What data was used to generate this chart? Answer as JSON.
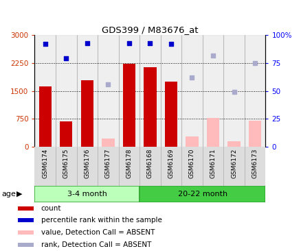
{
  "title": "GDS399 / M83676_at",
  "samples": [
    "GSM6174",
    "GSM6175",
    "GSM6176",
    "GSM6177",
    "GSM6178",
    "GSM6168",
    "GSM6169",
    "GSM6170",
    "GSM6171",
    "GSM6172",
    "GSM6173"
  ],
  "count_values": [
    1620,
    680,
    1780,
    null,
    2240,
    2130,
    1760,
    null,
    null,
    null,
    null
  ],
  "count_absent_values": [
    null,
    null,
    null,
    230,
    null,
    null,
    null,
    280,
    780,
    155,
    700
  ],
  "rank_values": [
    92,
    79,
    93,
    null,
    93,
    93,
    92,
    null,
    null,
    null,
    null
  ],
  "rank_absent_values": [
    null,
    null,
    null,
    56,
    null,
    null,
    null,
    62,
    82,
    49,
    75
  ],
  "ylim_left": [
    0,
    3000
  ],
  "ylim_right": [
    0,
    100
  ],
  "yticks_left": [
    0,
    750,
    1500,
    2250,
    3000
  ],
  "ytick_labels_left": [
    "0",
    "750",
    "1500",
    "2250",
    "3000"
  ],
  "yticks_right": [
    0,
    25,
    50,
    75,
    100
  ],
  "ytick_labels_right": [
    "0",
    "25",
    "50",
    "75",
    "100%"
  ],
  "bar_color_present": "#cc0000",
  "bar_color_absent": "#ffbbbb",
  "dot_color_present": "#0000cc",
  "dot_color_absent": "#aaaacc",
  "group1_color": "#bbffbb",
  "group2_color": "#44cc44",
  "legend_items": [
    {
      "label": "count",
      "color": "#cc0000"
    },
    {
      "label": "percentile rank within the sample",
      "color": "#0000cc"
    },
    {
      "label": "value, Detection Call = ABSENT",
      "color": "#ffbbbb"
    },
    {
      "label": "rank, Detection Call = ABSENT",
      "color": "#aaaacc"
    }
  ]
}
